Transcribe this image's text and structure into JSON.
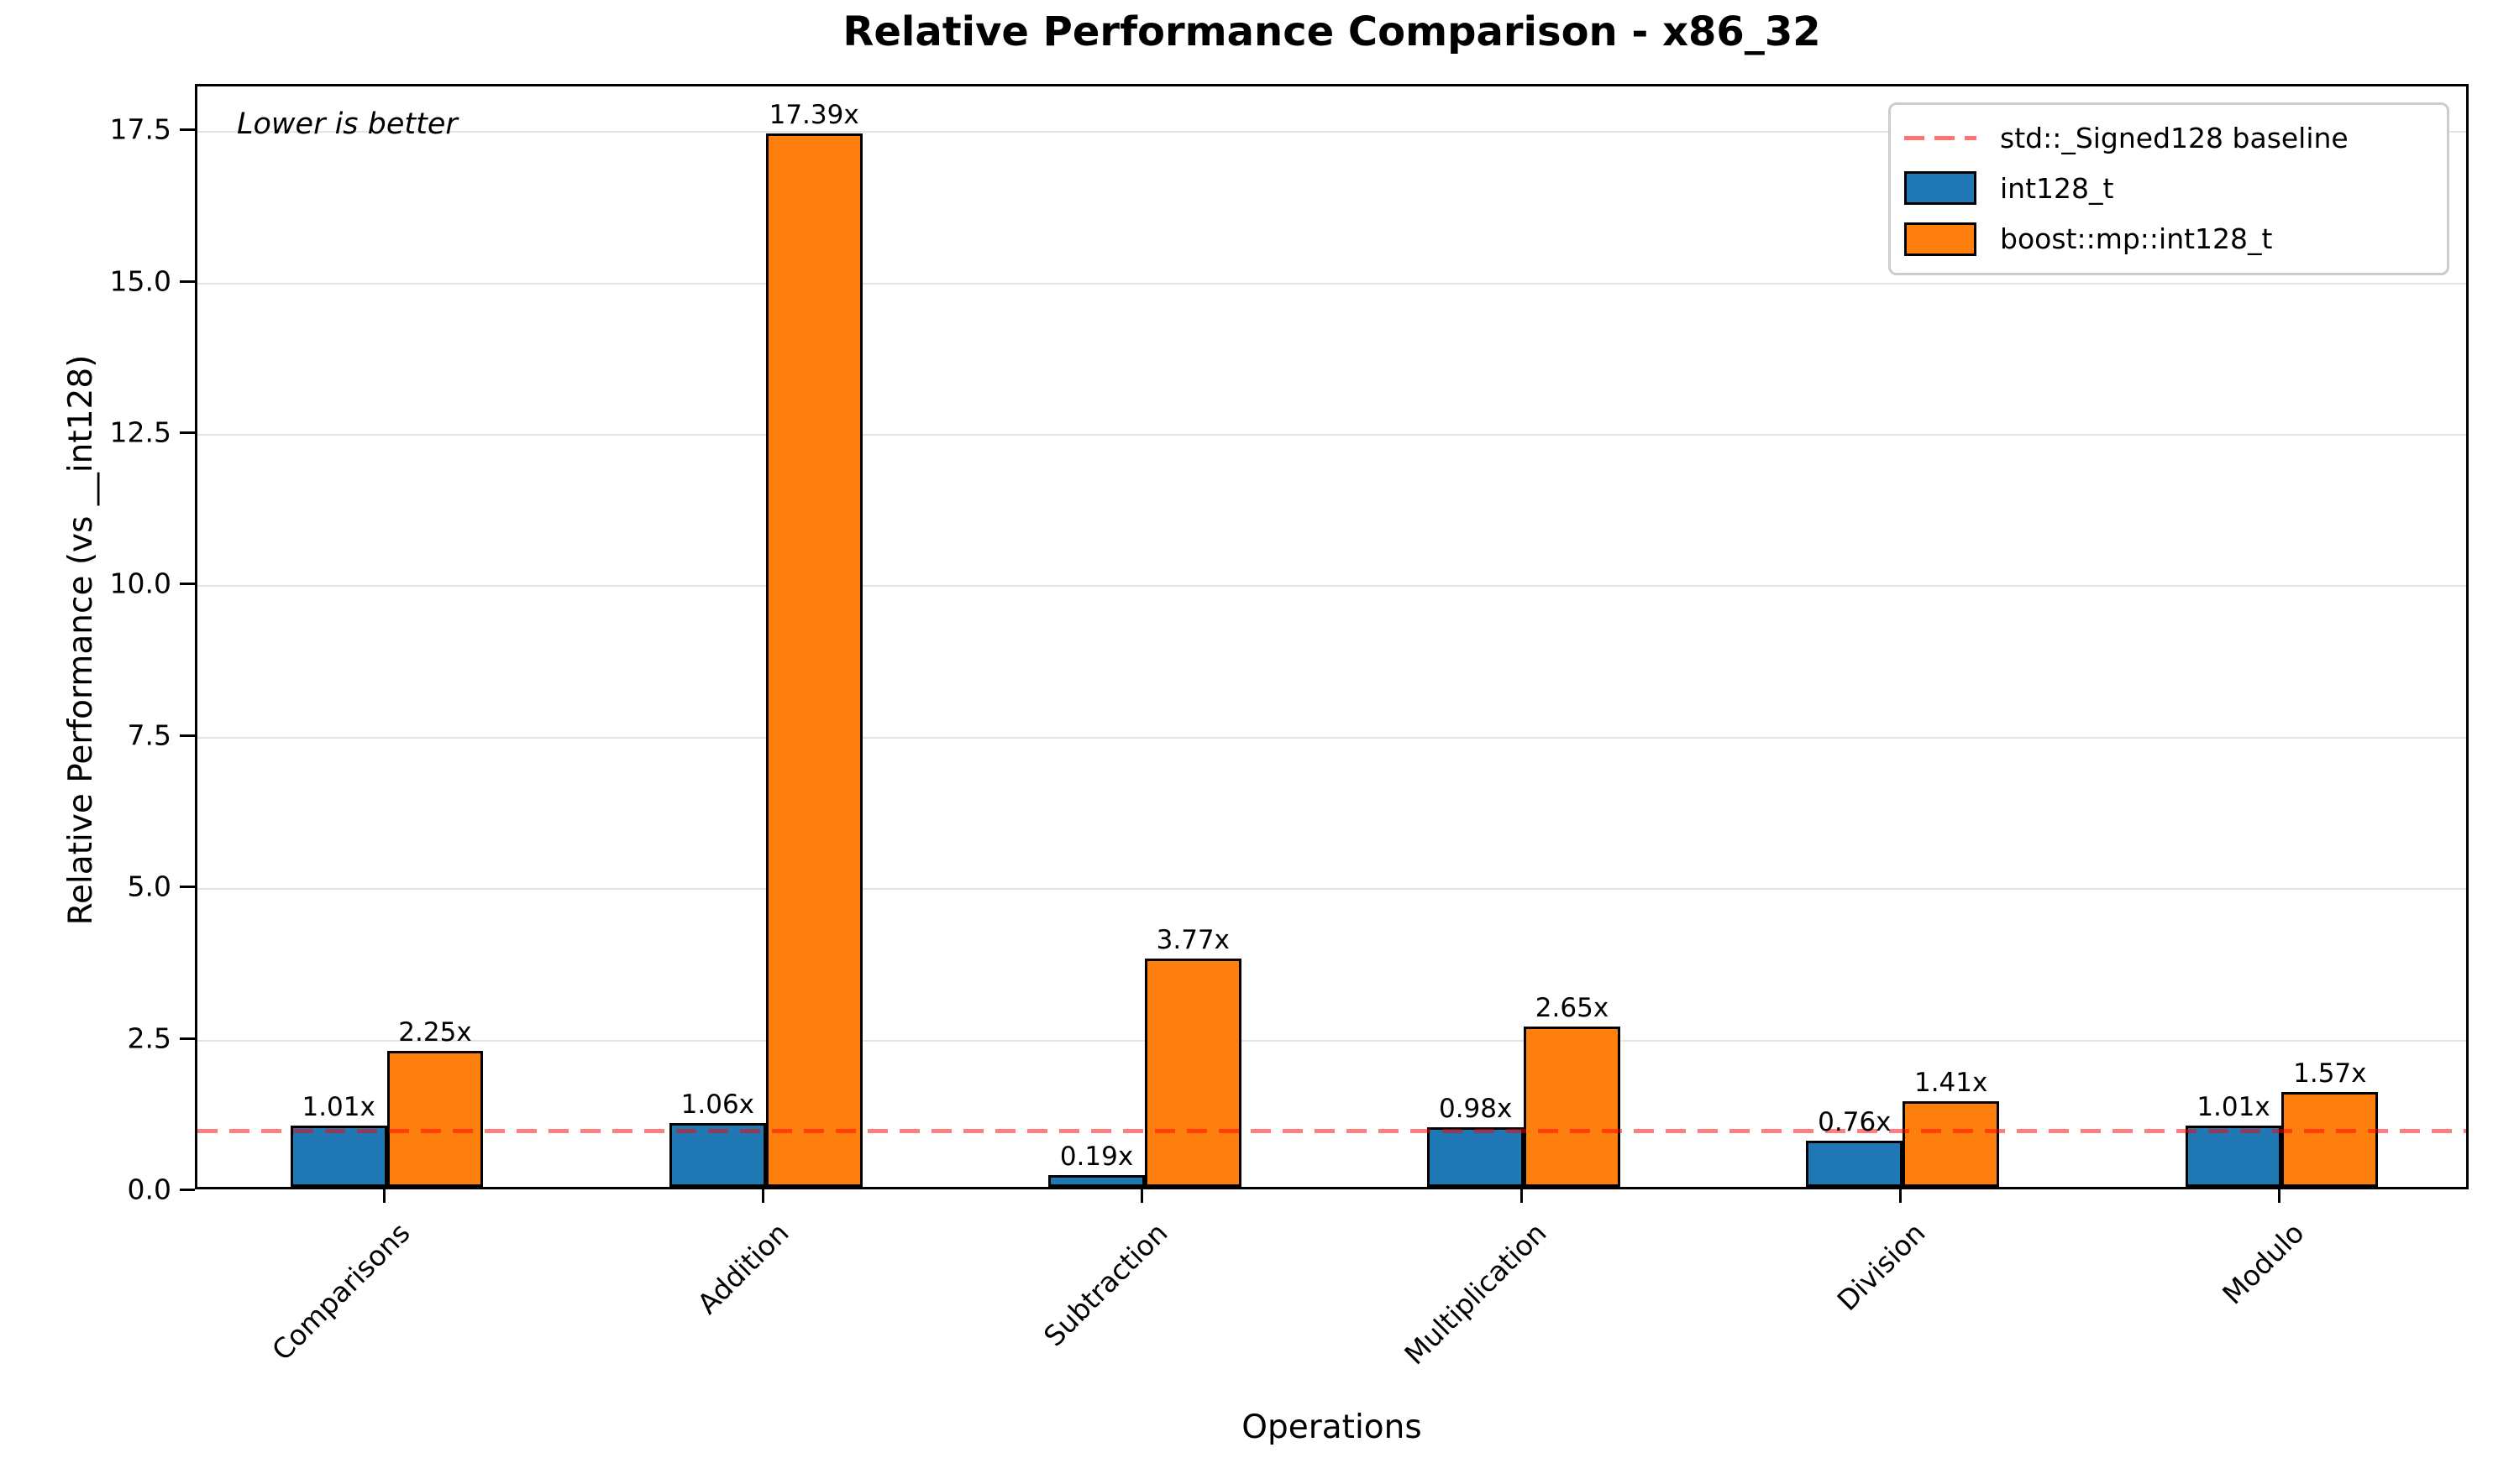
{
  "chart_data": {
    "type": "bar",
    "title": "Relative Performance Comparison - x86_32",
    "xlabel": "Operations",
    "ylabel": "Relative Performance (vs __int128)",
    "annotation": "Lower is better",
    "categories": [
      "Comparisons",
      "Addition",
      "Subtraction",
      "Multiplication",
      "Division",
      "Modulo"
    ],
    "series": [
      {
        "name": "int128_t",
        "color": "#1f77b4",
        "values": [
          1.01,
          1.06,
          0.19,
          0.98,
          0.76,
          1.01
        ],
        "labels": [
          "1.01x",
          "1.06x",
          "0.19x",
          "0.98x",
          "0.76x",
          "1.01x"
        ]
      },
      {
        "name": "boost::mp::int128_t",
        "color": "#ff7f0e",
        "values": [
          2.25,
          17.39,
          3.77,
          2.65,
          1.41,
          1.57
        ],
        "labels": [
          "2.25x",
          "17.39x",
          "3.77x",
          "2.65x",
          "1.41x",
          "1.57x"
        ]
      }
    ],
    "baseline": {
      "value": 1.0,
      "label": "std::_Signed128 baseline",
      "color": "#ff0000",
      "style": "dashed"
    },
    "yticks": [
      0.0,
      2.5,
      5.0,
      7.5,
      10.0,
      12.5,
      15.0,
      17.5
    ],
    "ytick_labels": [
      "0.0",
      "2.5",
      "5.0",
      "7.5",
      "10.0",
      "12.5",
      "15.0",
      "17.5"
    ],
    "ylim": [
      0,
      18.25
    ],
    "grid": true,
    "legend_position": "upper right",
    "bar_edge_color": "#000000",
    "grid_color": "#e4e4e4"
  }
}
